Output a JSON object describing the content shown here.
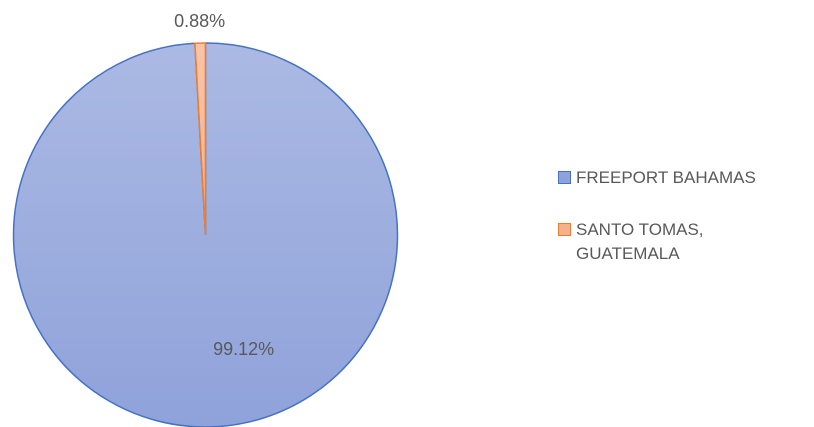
{
  "chart_data": {
    "type": "pie",
    "categories": [
      "FREEPORT BAHAMAS",
      "SANTO TOMAS, GUATEMALA"
    ],
    "values": [
      99.12,
      0.88
    ],
    "value_labels": [
      "99.12%",
      "0.88%"
    ],
    "colors": [
      "#8fa2da",
      "#f5b18a"
    ],
    "edge_colors": [
      "#4472c4",
      "#ed7d31"
    ],
    "legend": "right"
  }
}
